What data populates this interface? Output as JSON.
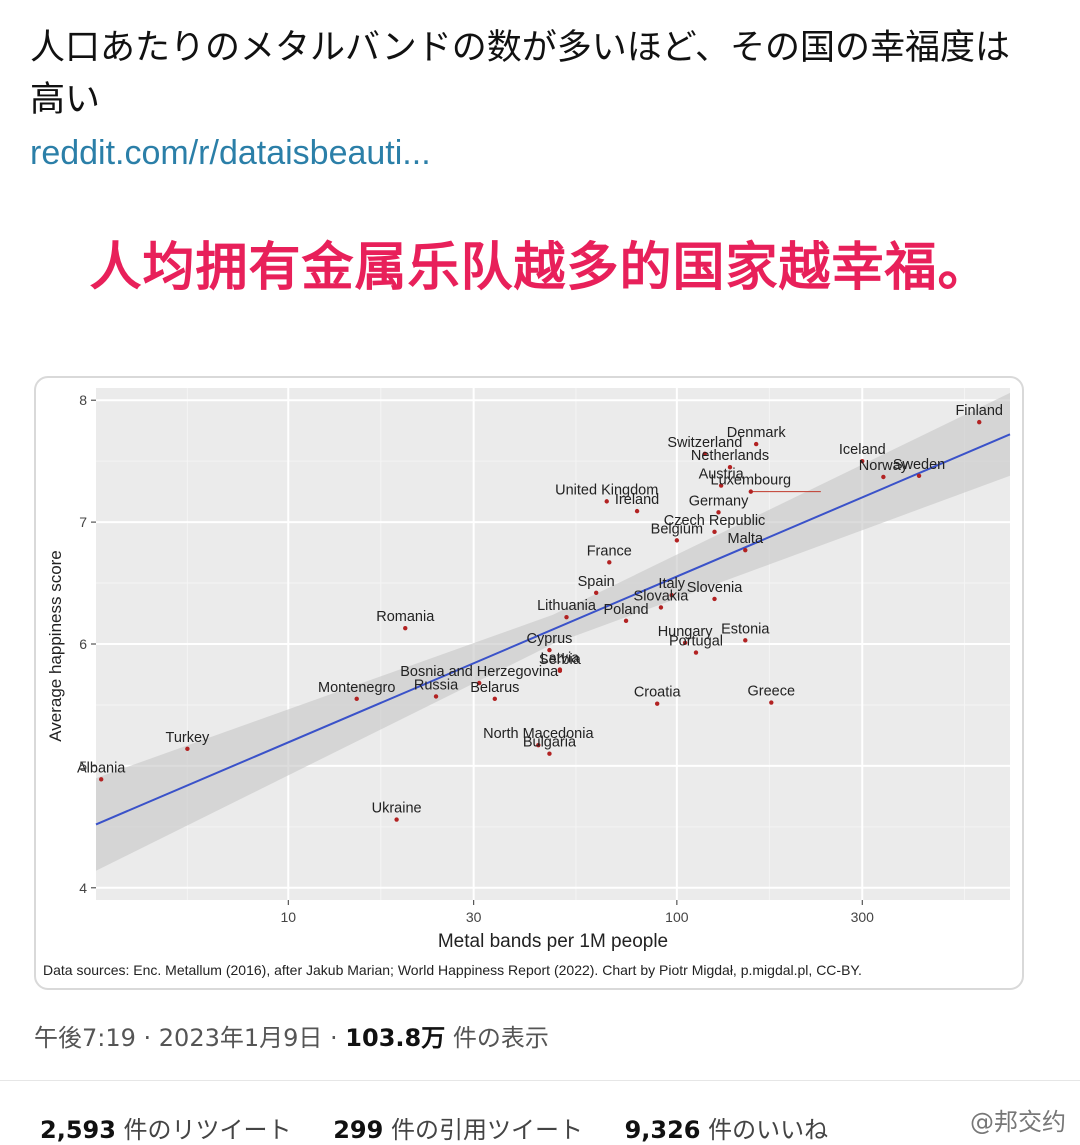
{
  "tweet": {
    "text": "人口あたりのメタルバンドの数が多いほど、その国の幸福度は高い",
    "link": "reddit.com/r/dataisbeauti..."
  },
  "banner": "人均拥有金属乐队越多的国家越幸福。",
  "chart_data": {
    "type": "scatter",
    "title": "",
    "xlabel": "Metal bands per 1M people",
    "ylabel": "Average happiness score",
    "x_scale": "log",
    "xlim": [
      3.2,
      720
    ],
    "ylim": [
      3.9,
      8.1
    ],
    "x_ticks": [
      10,
      30,
      100,
      300
    ],
    "y_ticks": [
      4,
      5,
      6,
      7,
      8
    ],
    "trend_line": {
      "x": [
        3.2,
        720
      ],
      "y": [
        4.52,
        7.72
      ]
    },
    "grid": true,
    "source_note": "Data sources: Enc. Metallum (2016), after Jakub Marian; World Happiness Report (2022). Chart by Piotr Migdał, p.migdal.pl, CC-BY.",
    "points": [
      {
        "name": "Finland",
        "x": 600,
        "y": 7.82
      },
      {
        "name": "Denmark",
        "x": 160,
        "y": 7.64
      },
      {
        "name": "Iceland",
        "x": 300,
        "y": 7.5
      },
      {
        "name": "Switzerland",
        "x": 118,
        "y": 7.56
      },
      {
        "name": "Norway",
        "x": 340,
        "y": 7.37
      },
      {
        "name": "Sweden",
        "x": 420,
        "y": 7.38
      },
      {
        "name": "Netherlands",
        "x": 137,
        "y": 7.45
      },
      {
        "name": "Austria",
        "x": 130,
        "y": 7.3
      },
      {
        "name": "Luxembourg",
        "x": 155,
        "y": 7.25
      },
      {
        "name": "United Kingdom",
        "x": 66,
        "y": 7.17
      },
      {
        "name": "Germany",
        "x": 128,
        "y": 7.08
      },
      {
        "name": "Ireland",
        "x": 79,
        "y": 7.09
      },
      {
        "name": "Czech Republic",
        "x": 125,
        "y": 6.92
      },
      {
        "name": "France",
        "x": 67,
        "y": 6.67
      },
      {
        "name": "Belgium",
        "x": 100,
        "y": 6.85
      },
      {
        "name": "Malta",
        "x": 150,
        "y": 6.77
      },
      {
        "name": "Spain",
        "x": 62,
        "y": 6.42
      },
      {
        "name": "Italy",
        "x": 97,
        "y": 6.4
      },
      {
        "name": "Slovenia",
        "x": 125,
        "y": 6.37
      },
      {
        "name": "Lithuania",
        "x": 52,
        "y": 6.22
      },
      {
        "name": "Slovakia",
        "x": 91,
        "y": 6.3
      },
      {
        "name": "Estonia",
        "x": 150,
        "y": 6.03
      },
      {
        "name": "Poland",
        "x": 74,
        "y": 6.19
      },
      {
        "name": "Cyprus",
        "x": 47,
        "y": 5.95
      },
      {
        "name": "Romania",
        "x": 20,
        "y": 6.13
      },
      {
        "name": "Hungary",
        "x": 105,
        "y": 6.01
      },
      {
        "name": "Portugal",
        "x": 112,
        "y": 5.93
      },
      {
        "name": "Latvia",
        "x": 50,
        "y": 5.79
      },
      {
        "name": "Bosnia and Herzegovina",
        "x": 31,
        "y": 5.68
      },
      {
        "name": "Serbia",
        "x": 50,
        "y": 5.78
      },
      {
        "name": "Croatia",
        "x": 89,
        "y": 5.51
      },
      {
        "name": "Greece",
        "x": 175,
        "y": 5.52
      },
      {
        "name": "Montenegro",
        "x": 15,
        "y": 5.55
      },
      {
        "name": "Russia",
        "x": 24,
        "y": 5.57
      },
      {
        "name": "Belarus",
        "x": 34,
        "y": 5.55
      },
      {
        "name": "North Macedonia",
        "x": 44,
        "y": 5.17
      },
      {
        "name": "Bulgaria",
        "x": 47,
        "y": 5.1
      },
      {
        "name": "Turkey",
        "x": 5.5,
        "y": 5.14
      },
      {
        "name": "Albania",
        "x": 3.3,
        "y": 4.89
      },
      {
        "name": "Ukraine",
        "x": 19,
        "y": 4.56
      }
    ]
  },
  "footer": {
    "time": "午後7:19 · 2023年1月9日 · ",
    "views": "103.8万",
    "views_suffix": " 件の表示"
  },
  "stats": {
    "retweets": "2,593",
    "retweets_label": " 件のリツイート",
    "quotes": "299",
    "quotes_label": " 件の引用ツイート",
    "likes": "9,326",
    "likes_label": " 件のいいね"
  },
  "watermark": "@邦交约"
}
